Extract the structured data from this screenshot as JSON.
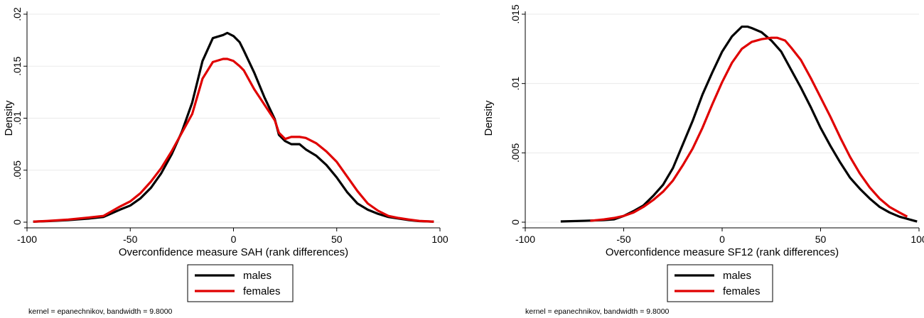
{
  "chart_data": [
    {
      "type": "line",
      "xlabel": "Overconfidence measure SAH (rank differences)",
      "ylabel": "Density",
      "note": "kernel = epanechnikov, bandwidth = 9.8000",
      "xlim": [
        -100,
        100
      ],
      "ylim": [
        0,
        0.02
      ],
      "xticks": [
        -100,
        -50,
        0,
        50,
        100
      ],
      "xtick_labels": [
        "-100",
        "-50",
        "0",
        "50",
        "100"
      ],
      "yticks": [
        0,
        0.005,
        0.01,
        0.015,
        0.02
      ],
      "ytick_labels": [
        "0",
        ".005",
        ".01",
        ".015",
        ".02"
      ],
      "grid": true,
      "legend_position": "bottom",
      "series": [
        {
          "name": "males",
          "color": "#000000",
          "x": [
            -97,
            -90,
            -80,
            -70,
            -63,
            -55,
            -50,
            -45,
            -40,
            -35,
            -30,
            -25,
            -20,
            -15,
            -10,
            -5,
            -3,
            0,
            3,
            5,
            10,
            15,
            20,
            22,
            25,
            28,
            32,
            35,
            40,
            45,
            50,
            55,
            60,
            65,
            70,
            75,
            80,
            85,
            90,
            97
          ],
          "y": [
            5e-05,
            0.0001,
            0.0002,
            0.00035,
            0.0005,
            0.0012,
            0.0016,
            0.0023,
            0.0033,
            0.0047,
            0.0065,
            0.0087,
            0.0115,
            0.0155,
            0.0177,
            0.018,
            0.0182,
            0.0179,
            0.0173,
            0.0165,
            0.0144,
            0.012,
            0.0099,
            0.0084,
            0.0078,
            0.0075,
            0.0075,
            0.007,
            0.0064,
            0.0055,
            0.0043,
            0.0029,
            0.0018,
            0.0012,
            0.0008,
            0.0005,
            0.00035,
            0.0002,
            0.0001,
            5e-05
          ]
        },
        {
          "name": "females",
          "color": "#e00000",
          "x": [
            -97,
            -90,
            -80,
            -70,
            -63,
            -55,
            -50,
            -45,
            -40,
            -35,
            -30,
            -25,
            -20,
            -15,
            -10,
            -5,
            -3,
            0,
            3,
            5,
            10,
            15,
            20,
            22,
            25,
            28,
            32,
            35,
            40,
            45,
            50,
            55,
            60,
            65,
            70,
            75,
            80,
            85,
            90,
            97
          ],
          "y": [
            5e-05,
            0.00012,
            0.00025,
            0.00045,
            0.0006,
            0.0015,
            0.002,
            0.0028,
            0.0039,
            0.0052,
            0.0068,
            0.0086,
            0.0104,
            0.0138,
            0.0154,
            0.0157,
            0.0157,
            0.0155,
            0.015,
            0.0146,
            0.0128,
            0.0113,
            0.0098,
            0.0086,
            0.008,
            0.0082,
            0.0082,
            0.0081,
            0.0076,
            0.0068,
            0.0058,
            0.0044,
            0.003,
            0.0018,
            0.0011,
            0.0006,
            0.0004,
            0.00025,
            0.00012,
            5e-05
          ]
        }
      ]
    },
    {
      "type": "line",
      "xlabel": "Overconfidence measure SF12 (rank differences)",
      "ylabel": "Density",
      "note": "kernel = epanechnikov, bandwidth = 9.8000",
      "xlim": [
        -100,
        100
      ],
      "ylim": [
        0,
        0.015
      ],
      "xticks": [
        -100,
        -50,
        0,
        50,
        100
      ],
      "xtick_labels": [
        "-100",
        "-50",
        "0",
        "50",
        "100"
      ],
      "yticks": [
        0,
        0.005,
        0.01,
        0.015
      ],
      "ytick_labels": [
        "0",
        ".005",
        ".01",
        ".015"
      ],
      "grid": true,
      "legend_position": "bottom",
      "series": [
        {
          "name": "males",
          "color": "#000000",
          "x": [
            -82,
            -70,
            -60,
            -55,
            -50,
            -45,
            -40,
            -35,
            -30,
            -25,
            -20,
            -15,
            -10,
            -5,
            0,
            5,
            10,
            13,
            15,
            20,
            25,
            30,
            35,
            40,
            45,
            50,
            55,
            60,
            65,
            70,
            75,
            80,
            85,
            90,
            95,
            99
          ],
          "y": [
            5e-05,
            0.0001,
            0.00015,
            0.0002,
            0.00045,
            0.0008,
            0.0012,
            0.0019,
            0.0027,
            0.0039,
            0.0056,
            0.0073,
            0.0092,
            0.0108,
            0.0123,
            0.0134,
            0.0141,
            0.0141,
            0.014,
            0.0137,
            0.0131,
            0.0123,
            0.011,
            0.0097,
            0.0083,
            0.0068,
            0.0055,
            0.0043,
            0.0032,
            0.0024,
            0.0017,
            0.0011,
            0.0007,
            0.0004,
            0.0002,
            5e-05
          ]
        },
        {
          "name": "females",
          "color": "#e00000",
          "x": [
            -67,
            -60,
            -55,
            -50,
            -45,
            -40,
            -35,
            -30,
            -25,
            -20,
            -15,
            -10,
            -5,
            0,
            5,
            10,
            15,
            20,
            25,
            28,
            32,
            35,
            40,
            45,
            50,
            55,
            60,
            65,
            70,
            75,
            80,
            85,
            90,
            94
          ],
          "y": [
            0.0001,
            0.0002,
            0.0003,
            0.00045,
            0.0007,
            0.0011,
            0.0016,
            0.0022,
            0.003,
            0.0041,
            0.0053,
            0.0068,
            0.0085,
            0.0101,
            0.0115,
            0.0125,
            0.013,
            0.0132,
            0.0133,
            0.0133,
            0.0131,
            0.0126,
            0.0117,
            0.0104,
            0.009,
            0.0076,
            0.0061,
            0.0047,
            0.0035,
            0.0025,
            0.0017,
            0.0011,
            0.0007,
            0.0004
          ]
        }
      ]
    }
  ]
}
